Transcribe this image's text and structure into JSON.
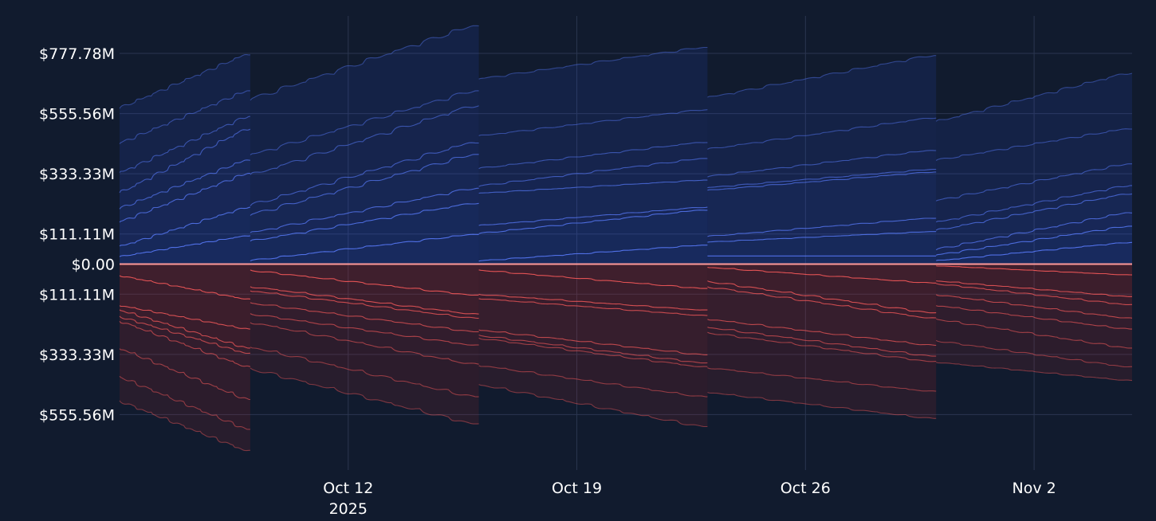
{
  "colors": {
    "background": "#111b2e",
    "grid": "#2b3650",
    "zero_line": "#ff9a9a",
    "long_base": "#2f55e8",
    "long_line": "#5a7dff",
    "short_base": "#c42a2a",
    "short_line": "#ff5c5c"
  },
  "chart_data": {
    "type": "area",
    "title": "",
    "xlabel": "",
    "ylabel": "",
    "grid": true,
    "legend": "none",
    "x_range": [
      "2025-10-05",
      "2025-11-05"
    ],
    "ylim": [
      -680,
      840
    ],
    "y_unit": "millions USD",
    "y_ticks": [
      {
        "value": 777.78,
        "label": "$777.78M"
      },
      {
        "value": 555.56,
        "label": "$555.56M"
      },
      {
        "value": 333.33,
        "label": "$333.33M"
      },
      {
        "value": 111.11,
        "label": "$111.11M"
      },
      {
        "value": 0,
        "label": "$0.00"
      },
      {
        "value": -111.11,
        "label": "$111.11M"
      },
      {
        "value": -333.33,
        "label": "$333.33M"
      },
      {
        "value": -555.56,
        "label": "$555.56M"
      }
    ],
    "x_ticks": [
      {
        "date": "2025-10-12",
        "label": "Oct 12",
        "sublabel": "2025"
      },
      {
        "date": "2025-10-19",
        "label": "Oct 19",
        "sublabel": ""
      },
      {
        "date": "2025-10-26",
        "label": "Oct 26",
        "sublabel": ""
      },
      {
        "date": "2025-11-02",
        "label": "Nov 2",
        "sublabel": ""
      }
    ],
    "resets": [
      "2025-10-09",
      "2025-10-16",
      "2025-10-23",
      "2025-10-30"
    ],
    "long_stack": {
      "description": "stacked cumulative levels above zero (millions USD) at segment start and segment end",
      "segments": [
        {
          "start": "2025-10-05",
          "end": "2025-10-09",
          "levels_start": [
            25,
            60,
            150,
            200,
            255,
            330,
            440,
            570
          ],
          "levels_end": [
            105,
            210,
            335,
            385,
            500,
            545,
            640,
            775
          ]
        },
        {
          "start": "2025-10-09",
          "end": "2025-10-16",
          "levels_start": [
            10,
            80,
            110,
            175,
            210,
            320,
            395,
            600
          ],
          "levels_end": [
            110,
            225,
            280,
            405,
            450,
            585,
            640,
            880
          ]
        },
        {
          "start": "2025-10-16",
          "end": "2025-10-23",
          "levels_start": [
            10,
            110,
            140,
            260,
            285,
            350,
            470,
            680
          ],
          "levels_end": [
            70,
            200,
            210,
            310,
            390,
            450,
            570,
            800
          ]
        },
        {
          "start": "2025-10-23",
          "end": "2025-10-30",
          "levels_start": [
            30,
            80,
            100,
            270,
            280,
            320,
            420,
            610
          ],
          "levels_end": [
            30,
            120,
            170,
            340,
            350,
            420,
            540,
            770
          ]
        },
        {
          "start": "2025-10-30",
          "end": "2025-11-05",
          "levels_start": [
            10,
            30,
            50,
            120,
            150,
            230,
            380,
            520
          ],
          "levels_end": [
            80,
            140,
            190,
            260,
            290,
            370,
            500,
            705
          ]
        }
      ]
    },
    "short_stack": {
      "description": "stacked cumulative levels below zero (millions USD, shown downward) at segment start and segment end",
      "segments": [
        {
          "start": "2025-10-05",
          "end": "2025-10-09",
          "levels_start": [
            -40,
            -150,
            -165,
            -190,
            -205,
            -305,
            -410,
            -500
          ],
          "levels_end": [
            -130,
            -240,
            -310,
            -330,
            -380,
            -500,
            -610,
            -690
          ]
        },
        {
          "start": "2025-10-09",
          "end": "2025-10-16",
          "levels_start": [
            -20,
            -80,
            -95,
            -140,
            -180,
            -210,
            -300,
            -380
          ],
          "levels_end": [
            -115,
            -185,
            -200,
            -250,
            -300,
            -370,
            -490,
            -590
          ]
        },
        {
          "start": "2025-10-16",
          "end": "2025-10-23",
          "levels_start": [
            -20,
            -110,
            -125,
            -240,
            -260,
            -270,
            -370,
            -440
          ],
          "levels_end": [
            -90,
            -170,
            -190,
            -335,
            -365,
            -380,
            -490,
            -600
          ]
        },
        {
          "start": "2025-10-23",
          "end": "2025-10-30",
          "levels_start": [
            -10,
            -60,
            -80,
            -200,
            -230,
            -250,
            -380,
            -470
          ],
          "levels_end": [
            -70,
            -180,
            -200,
            -300,
            -340,
            -360,
            -470,
            -570
          ]
        },
        {
          "start": "2025-10-30",
          "end": "2025-11-05",
          "levels_start": [
            -5,
            -60,
            -70,
            -110,
            -150,
            -200,
            -280,
            -360
          ],
          "levels_end": [
            -40,
            -120,
            -150,
            -200,
            -240,
            -310,
            -380,
            -430
          ]
        }
      ]
    }
  }
}
